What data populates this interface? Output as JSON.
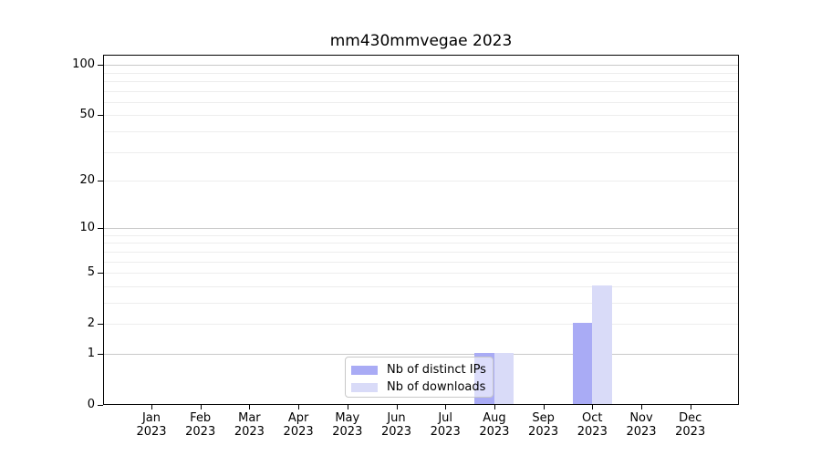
{
  "title": "mm430mmvegae 2023",
  "chart_data": {
    "type": "bar",
    "title": "mm430mmvegae 2023",
    "x_categories": [
      {
        "month": "Jan",
        "year": "2023"
      },
      {
        "month": "Feb",
        "year": "2023"
      },
      {
        "month": "Mar",
        "year": "2023"
      },
      {
        "month": "Apr",
        "year": "2023"
      },
      {
        "month": "May",
        "year": "2023"
      },
      {
        "month": "Jun",
        "year": "2023"
      },
      {
        "month": "Jul",
        "year": "2023"
      },
      {
        "month": "Aug",
        "year": "2023"
      },
      {
        "month": "Sep",
        "year": "2023"
      },
      {
        "month": "Oct",
        "year": "2023"
      },
      {
        "month": "Nov",
        "year": "2023"
      },
      {
        "month": "Dec",
        "year": "2023"
      }
    ],
    "series": [
      {
        "name": "Nb of distinct IPs",
        "color": "#a9abf5",
        "values": [
          0,
          0,
          0,
          0,
          0,
          0,
          0,
          1,
          0,
          2,
          0,
          0
        ]
      },
      {
        "name": "Nb of downloads",
        "color": "#d9dbf8",
        "values": [
          0,
          0,
          0,
          0,
          0,
          0,
          0,
          1,
          0,
          4,
          0,
          0
        ]
      }
    ],
    "yscale": "log1p",
    "ylim": [
      0,
      116
    ],
    "yticks": [
      {
        "value": 100,
        "label": "100"
      },
      {
        "value": 50,
        "label": "50"
      },
      {
        "value": 20,
        "label": "20"
      },
      {
        "value": 10,
        "label": "10"
      },
      {
        "value": 5,
        "label": "5"
      },
      {
        "value": 2,
        "label": "2"
      },
      {
        "value": 1,
        "label": "1"
      },
      {
        "value": 0,
        "label": "0"
      }
    ],
    "major_gridlines": [
      1,
      10,
      100
    ],
    "minor_gridlines": [
      2,
      3,
      4,
      5,
      6,
      7,
      8,
      9,
      20,
      30,
      40,
      50,
      60,
      70,
      80,
      90
    ],
    "grid": true,
    "legend_position": "lower center"
  },
  "legend": {
    "items": [
      {
        "label": "Nb of distinct IPs",
        "color": "#a9abf5"
      },
      {
        "label": "Nb of downloads",
        "color": "#d9dbf8"
      }
    ]
  },
  "colors": {
    "grid_major": "#c9c9c9",
    "grid_minor": "#ededed",
    "spine": "#000000",
    "legend_border": "#c8c8c8",
    "background": "#ffffff",
    "text": "#000000"
  }
}
